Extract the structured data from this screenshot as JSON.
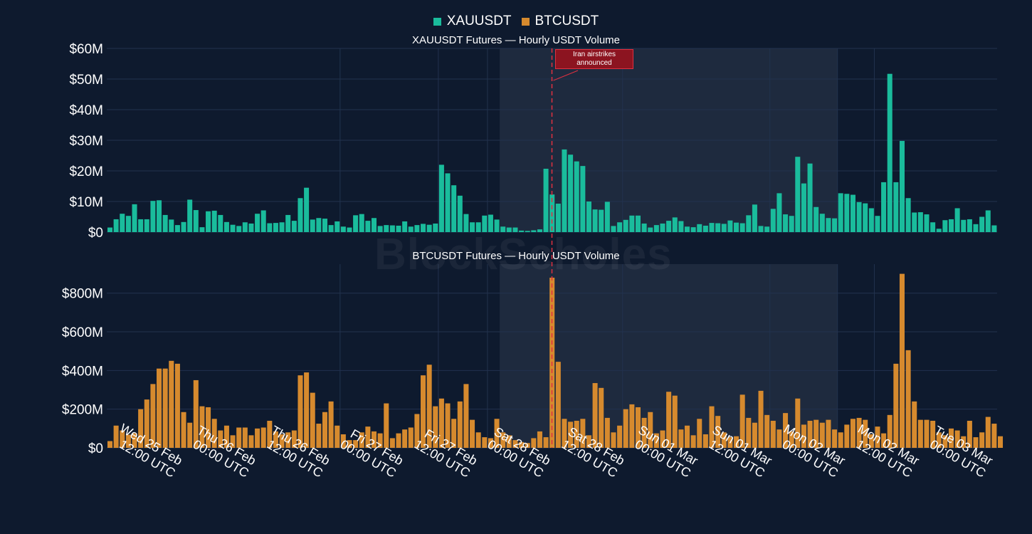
{
  "legend": {
    "items": [
      {
        "label": "XAUUSDT",
        "color": "#1abc9c"
      },
      {
        "label": "BTCUSDT",
        "color": "#d68a2e"
      }
    ]
  },
  "panels": [
    {
      "title": "XAUUSDT Futures — Hourly USDT Volume"
    },
    {
      "title": "BTCUSDT Futures — Hourly USDT Volume"
    }
  ],
  "watermark": "BlockScholes",
  "annotation": {
    "line1": "Iran airstrikes",
    "line2": "announced"
  },
  "chart_data": [
    {
      "type": "bar",
      "title": "XAUUSDT Futures — Hourly USDT Volume",
      "color": "#1abc9c",
      "x_start": "2026-02-25 00:00 UTC",
      "x_step_hours": 1,
      "ylim": [
        0,
        60000000
      ],
      "yticks": [
        0,
        10000000,
        20000000,
        30000000,
        40000000,
        50000000,
        60000000
      ],
      "ytick_labels": [
        "$0",
        "$10M",
        "$20M",
        "$30M",
        "$40M",
        "$50M",
        "$60M"
      ],
      "values_musd": [
        1.5,
        4.2,
        6,
        5.3,
        9.1,
        4.2,
        4.2,
        10.2,
        10.4,
        5.6,
        4.1,
        2.3,
        3.3,
        10.6,
        7.2,
        1.6,
        6.8,
        7,
        5.6,
        3.3,
        2.4,
        2,
        3.2,
        2.8,
        6,
        7.1,
        2.9,
        3,
        3.2,
        5.6,
        3.7,
        11.1,
        14.5,
        4.1,
        4.6,
        4.4,
        2.3,
        3.5,
        1.8,
        1.5,
        5.5,
        5.9,
        3.7,
        4.6,
        2,
        2.3,
        2.2,
        2.1,
        3.5,
        1.8,
        2.3,
        2.7,
        2.4,
        2.8,
        22,
        19.2,
        15.3,
        11.9,
        5.9,
        3.2,
        3.2,
        5.4,
        5.7,
        4.1,
        1.8,
        1.5,
        1.5,
        0.5,
        0.4,
        0.6,
        0.9,
        20.7,
        12.3,
        9.3,
        27,
        25.3,
        23.1,
        21.6,
        10,
        7.4,
        7.3,
        9.9,
        2,
        3.2,
        4,
        5.4,
        5.4,
        2.8,
        1.5,
        2.3,
        2.8,
        3.7,
        4.8,
        3.6,
        1.8,
        1.6,
        2.6,
        2.1,
        3,
        2.9,
        2.7,
        3.8,
        3.1,
        2.9,
        5.5,
        9,
        2,
        1.8,
        7.6,
        12.7,
        5.8,
        5.3,
        24.6,
        15.9,
        22.4,
        8.2,
        6,
        4.6,
        4.5,
        12.7,
        12.5,
        12.2,
        9.8,
        9.4,
        7.8,
        5.3,
        16.3,
        51.7,
        16.3,
        29.8,
        11.1,
        6.4,
        6.5,
        5.8,
        3.2,
        1.1,
        3.9,
        4.2,
        7.8,
        4,
        4.2,
        2.6,
        5,
        7.1,
        2.2
      ]
    },
    {
      "type": "bar",
      "title": "BTCUSDT Futures — Hourly USDT Volume",
      "color": "#d68a2e",
      "x_start": "2026-02-25 00:00 UTC",
      "x_step_hours": 1,
      "ylim": [
        0,
        950000000
      ],
      "yticks": [
        0,
        200000000,
        400000000,
        600000000,
        800000000
      ],
      "ytick_labels": [
        "$0",
        "$200M",
        "$400M",
        "$600M",
        "$800M"
      ],
      "values_musd": [
        35,
        115,
        90,
        68,
        75,
        200,
        250,
        330,
        410,
        410,
        450,
        435,
        185,
        130,
        350,
        215,
        210,
        150,
        90,
        115,
        65,
        105,
        105,
        65,
        100,
        105,
        140,
        85,
        70,
        80,
        90,
        375,
        390,
        285,
        125,
        185,
        240,
        115,
        70,
        40,
        40,
        80,
        110,
        85,
        75,
        230,
        50,
        75,
        95,
        105,
        175,
        375,
        430,
        215,
        255,
        230,
        150,
        240,
        330,
        145,
        80,
        55,
        50,
        150,
        80,
        65,
        40,
        30,
        25,
        50,
        85,
        55,
        880,
        445,
        150,
        135,
        140,
        150,
        65,
        335,
        310,
        155,
        80,
        115,
        200,
        225,
        210,
        155,
        185,
        75,
        90,
        290,
        270,
        95,
        115,
        65,
        150,
        70,
        215,
        165,
        80,
        55,
        60,
        275,
        155,
        130,
        295,
        170,
        140,
        95,
        180,
        85,
        255,
        120,
        140,
        145,
        130,
        145,
        95,
        80,
        120,
        150,
        155,
        145,
        70,
        110,
        75,
        170,
        435,
        900,
        505,
        240,
        145,
        145,
        140,
        80,
        65,
        100,
        90,
        60,
        140,
        55,
        80,
        160,
        125,
        60
      ]
    }
  ],
  "x_axis": {
    "tick_labels": [
      {
        "line1": "Wed 25 Feb",
        "line2": "12:00 UTC"
      },
      {
        "line1": "Thu 26 Feb",
        "line2": "00:00 UTC"
      },
      {
        "line1": "Thu 26 Feb",
        "line2": "12:00 UTC"
      },
      {
        "line1": "Fri 27 Feb",
        "line2": "00:00 UTC"
      },
      {
        "line1": "Fri 27 Feb",
        "line2": "12:00 UTC"
      },
      {
        "line1": "Sat 28 Feb",
        "line2": "00:00 UTC"
      },
      {
        "line1": "Sat 28 Feb",
        "line2": "12:00 UTC"
      },
      {
        "line1": "Sun 01 Mar",
        "line2": "00:00 UTC"
      },
      {
        "line1": "Sun 01 Mar",
        "line2": "12:00 UTC"
      },
      {
        "line1": "Mon 02 Mar",
        "line2": "00:00 UTC"
      },
      {
        "line1": "Mon 02 Mar",
        "line2": "12:00 UTC"
      },
      {
        "line1": "Tue 03 Mar",
        "line2": "00:00 UTC"
      }
    ],
    "tick_hours": [
      12,
      24,
      36,
      48,
      60,
      72,
      84,
      96,
      108,
      120,
      132,
      144
    ]
  },
  "shaded_region_hours": [
    64,
    119
  ],
  "event_line_hour": 72.5,
  "colors": {
    "background": "#0e1a2e",
    "grid": "#22324e",
    "shade": "#1e2a3e",
    "event_line": "#e03040"
  }
}
